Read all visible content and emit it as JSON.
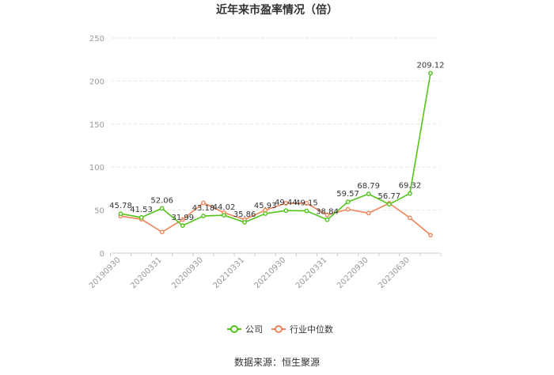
{
  "title": "近年来市盈率情况（倍）",
  "source": "数据来源：恒生聚源",
  "colors": {
    "company": "#52c41a",
    "industry": "#f0845b",
    "axis": "#cccccc",
    "grid": "#e6e6e6"
  },
  "chart_data": {
    "type": "line",
    "title": "近年来市盈率情况（倍）",
    "xlabel": "",
    "ylabel": "",
    "ylim": [
      0,
      250
    ],
    "yticks": [
      0,
      50,
      100,
      150,
      200,
      250
    ],
    "grid": true,
    "legend_position": "bottom",
    "x_tick_labels": [
      "20190930",
      "20200331",
      "20200930",
      "20210331",
      "20210930",
      "20220331",
      "20220930",
      "20230630"
    ],
    "x_tick_positions": [
      0,
      2,
      4,
      6,
      8,
      10,
      12,
      14
    ],
    "num_points": 16,
    "series": [
      {
        "name": "公司",
        "values": [
          45.78,
          41.53,
          52.06,
          31.99,
          43.18,
          44.02,
          35.86,
          45.93,
          49.44,
          49.15,
          38.84,
          59.57,
          68.79,
          56.77,
          69.32,
          209.12
        ],
        "labels": [
          "45.78",
          "41.53",
          "52.06",
          "31.99",
          "43.18",
          "44.02",
          "35.86",
          "45.93",
          "49.44",
          "49.15",
          "38.84",
          "59.57",
          "68.79",
          "56.77",
          "69.32",
          "209.12"
        ]
      },
      {
        "name": "行业中位数",
        "values": [
          43,
          39.5,
          24.5,
          39,
          58.5,
          47,
          39,
          50,
          58,
          58,
          44.5,
          51,
          46.5,
          58,
          41,
          21
        ]
      }
    ]
  }
}
